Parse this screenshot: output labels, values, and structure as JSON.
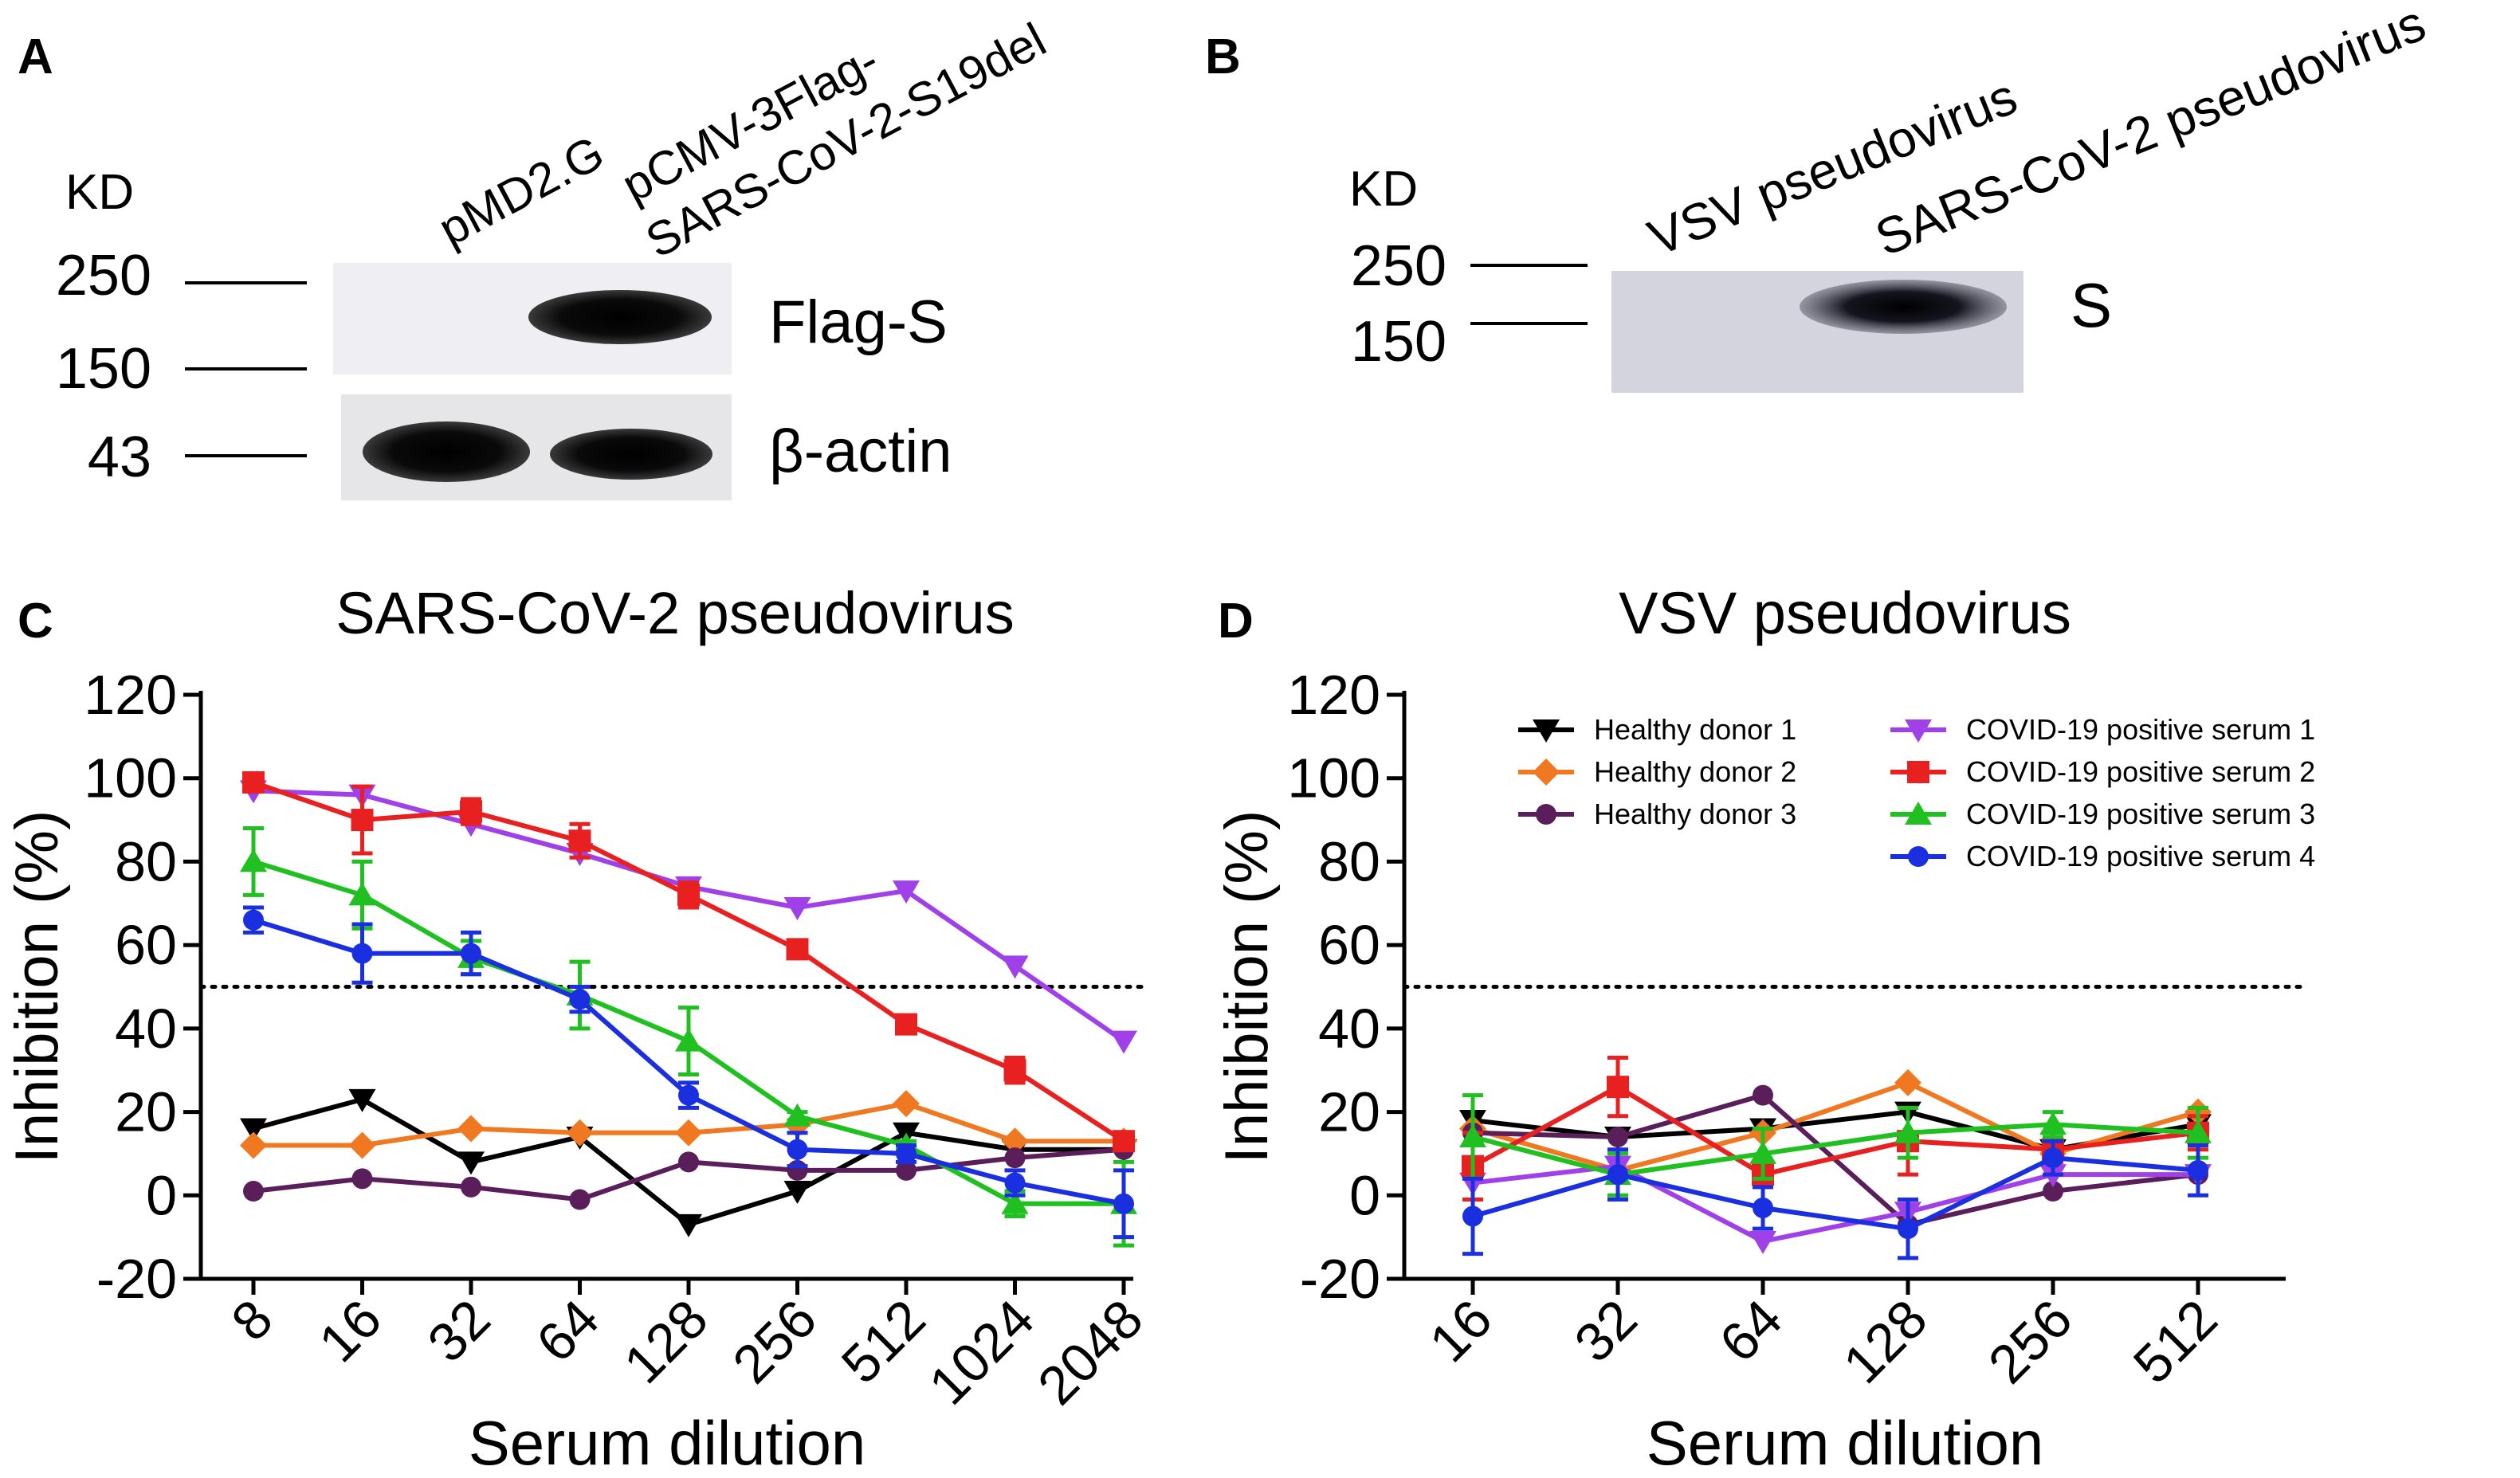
{
  "panels": {
    "A": {
      "letter": "A",
      "kd_label": "KD",
      "lane_labels": [
        "pMD2.G",
        "pCMV-3Flag-",
        "SARS-CoV-2-S19del"
      ],
      "markers": [
        "250",
        "150",
        "43"
      ],
      "band_labels": [
        "Flag-S",
        "β-actin"
      ]
    },
    "B": {
      "letter": "B",
      "kd_label": "KD",
      "lane_labels": [
        "VSV pseudovirus",
        "SARS-CoV-2 pseudovirus"
      ],
      "markers": [
        "250",
        "150"
      ],
      "band_labels": [
        "S"
      ]
    },
    "C": {
      "letter": "C"
    },
    "D": {
      "letter": "D"
    }
  },
  "colors": {
    "Healthy donor 1": "#000000",
    "Healthy donor 2": "#f07820",
    "Healthy donor 3": "#5a1e5a",
    "COVID-19 positive serum 1": "#a040e8",
    "COVID-19 positive serum 2": "#e82020",
    "COVID-19 positive serum 3": "#20c020",
    "COVID-19 positive serum 4": "#1a30e0"
  },
  "markers": {
    "Healthy donor 1": "triangle-down",
    "Healthy donor 2": "diamond",
    "Healthy donor 3": "circle",
    "COVID-19 positive serum 1": "triangle-down",
    "COVID-19 positive serum 2": "square",
    "COVID-19 positive serum 3": "triangle-up",
    "COVID-19 positive serum 4": "circle"
  },
  "chart_data": [
    {
      "panel": "C",
      "type": "line",
      "title": "SARS-CoV-2 pseudovirus",
      "xlabel": "Serum dilution",
      "ylabel": "Inhibition (%)",
      "categories": [
        "8",
        "16",
        "32",
        "64",
        "128",
        "256",
        "512",
        "1024",
        "2048"
      ],
      "ylim": [
        -20,
        120
      ],
      "yticks": [
        "-20",
        "0",
        "20",
        "40",
        "60",
        "80",
        "100",
        "120"
      ],
      "reference_line": 50,
      "series": [
        {
          "name": "Healthy donor 1",
          "values": [
            16,
            23,
            8,
            14,
            -7,
            1,
            15,
            11,
            11
          ],
          "errors": [
            0,
            0,
            0,
            0,
            0,
            0,
            0,
            0,
            0
          ]
        },
        {
          "name": "Healthy donor 2",
          "values": [
            12,
            12,
            16,
            15,
            15,
            17,
            22,
            13,
            13
          ],
          "errors": [
            0,
            0,
            0,
            0,
            0,
            0,
            0,
            0,
            0
          ]
        },
        {
          "name": "Healthy donor 3",
          "values": [
            1,
            4,
            2,
            -1,
            8,
            6,
            6,
            9,
            11
          ],
          "errors": [
            0,
            0,
            0,
            0,
            0,
            0,
            0,
            0,
            0
          ]
        },
        {
          "name": "COVID-19 positive serum 1",
          "values": [
            97,
            96,
            89,
            82,
            74,
            69,
            73,
            55,
            37
          ],
          "errors": [
            0,
            0,
            0,
            0,
            0,
            0,
            0,
            0,
            0
          ]
        },
        {
          "name": "COVID-19 positive serum 2",
          "values": [
            99,
            90,
            92,
            85,
            72,
            59,
            41,
            30,
            13
          ],
          "errors": [
            2,
            8,
            3,
            4,
            3,
            1,
            1,
            3,
            2
          ]
        },
        {
          "name": "COVID-19 positive serum 3",
          "values": [
            80,
            72,
            57,
            48,
            37,
            19,
            12,
            -2,
            -2
          ],
          "errors": [
            8,
            8,
            4,
            8,
            8,
            1,
            1,
            3,
            10
          ]
        },
        {
          "name": "COVID-19 positive serum 4",
          "values": [
            66,
            58,
            58,
            47,
            24,
            11,
            10,
            3,
            -2
          ],
          "errors": [
            3,
            7,
            5,
            3,
            3,
            4,
            2,
            3,
            8
          ]
        }
      ]
    },
    {
      "panel": "D",
      "type": "line",
      "title": "VSV pseudovirus",
      "xlabel": "Serum dilution",
      "ylabel": "Inhibition (%)",
      "categories": [
        "16",
        "32",
        "64",
        "128",
        "256",
        "512"
      ],
      "ylim": [
        -20,
        120
      ],
      "yticks": [
        "-20",
        "0",
        "20",
        "40",
        "60",
        "80",
        "100",
        "120"
      ],
      "reference_line": 50,
      "legend_position": "top-right",
      "series": [
        {
          "name": "Healthy donor 1",
          "values": [
            18,
            14,
            16,
            20,
            11,
            17
          ],
          "errors": [
            0,
            0,
            0,
            0,
            0,
            0
          ]
        },
        {
          "name": "Healthy donor 2",
          "values": [
            16,
            6,
            15,
            27,
            10,
            20
          ],
          "errors": [
            0,
            0,
            0,
            0,
            0,
            0
          ]
        },
        {
          "name": "Healthy donor 3",
          "values": [
            15,
            14,
            24,
            -7,
            1,
            5
          ],
          "errors": [
            0,
            0,
            0,
            0,
            0,
            0
          ]
        },
        {
          "name": "COVID-19 positive serum 1",
          "values": [
            3,
            7,
            -11,
            -4,
            5,
            5
          ],
          "errors": [
            0,
            0,
            0,
            0,
            0,
            0
          ]
        },
        {
          "name": "COVID-19 positive serum 2",
          "values": [
            7,
            26,
            5,
            13,
            11,
            15
          ],
          "errors": [
            8,
            7,
            3,
            8,
            3,
            4
          ]
        },
        {
          "name": "COVID-19 positive serum 3",
          "values": [
            14,
            5,
            10,
            15,
            17,
            15
          ],
          "errors": [
            10,
            5,
            6,
            6,
            3,
            6
          ]
        },
        {
          "name": "COVID-19 positive serum 4",
          "values": [
            -5,
            5,
            -3,
            -8,
            9,
            6
          ],
          "errors": [
            9,
            6,
            5,
            7,
            4,
            6
          ]
        }
      ]
    }
  ]
}
